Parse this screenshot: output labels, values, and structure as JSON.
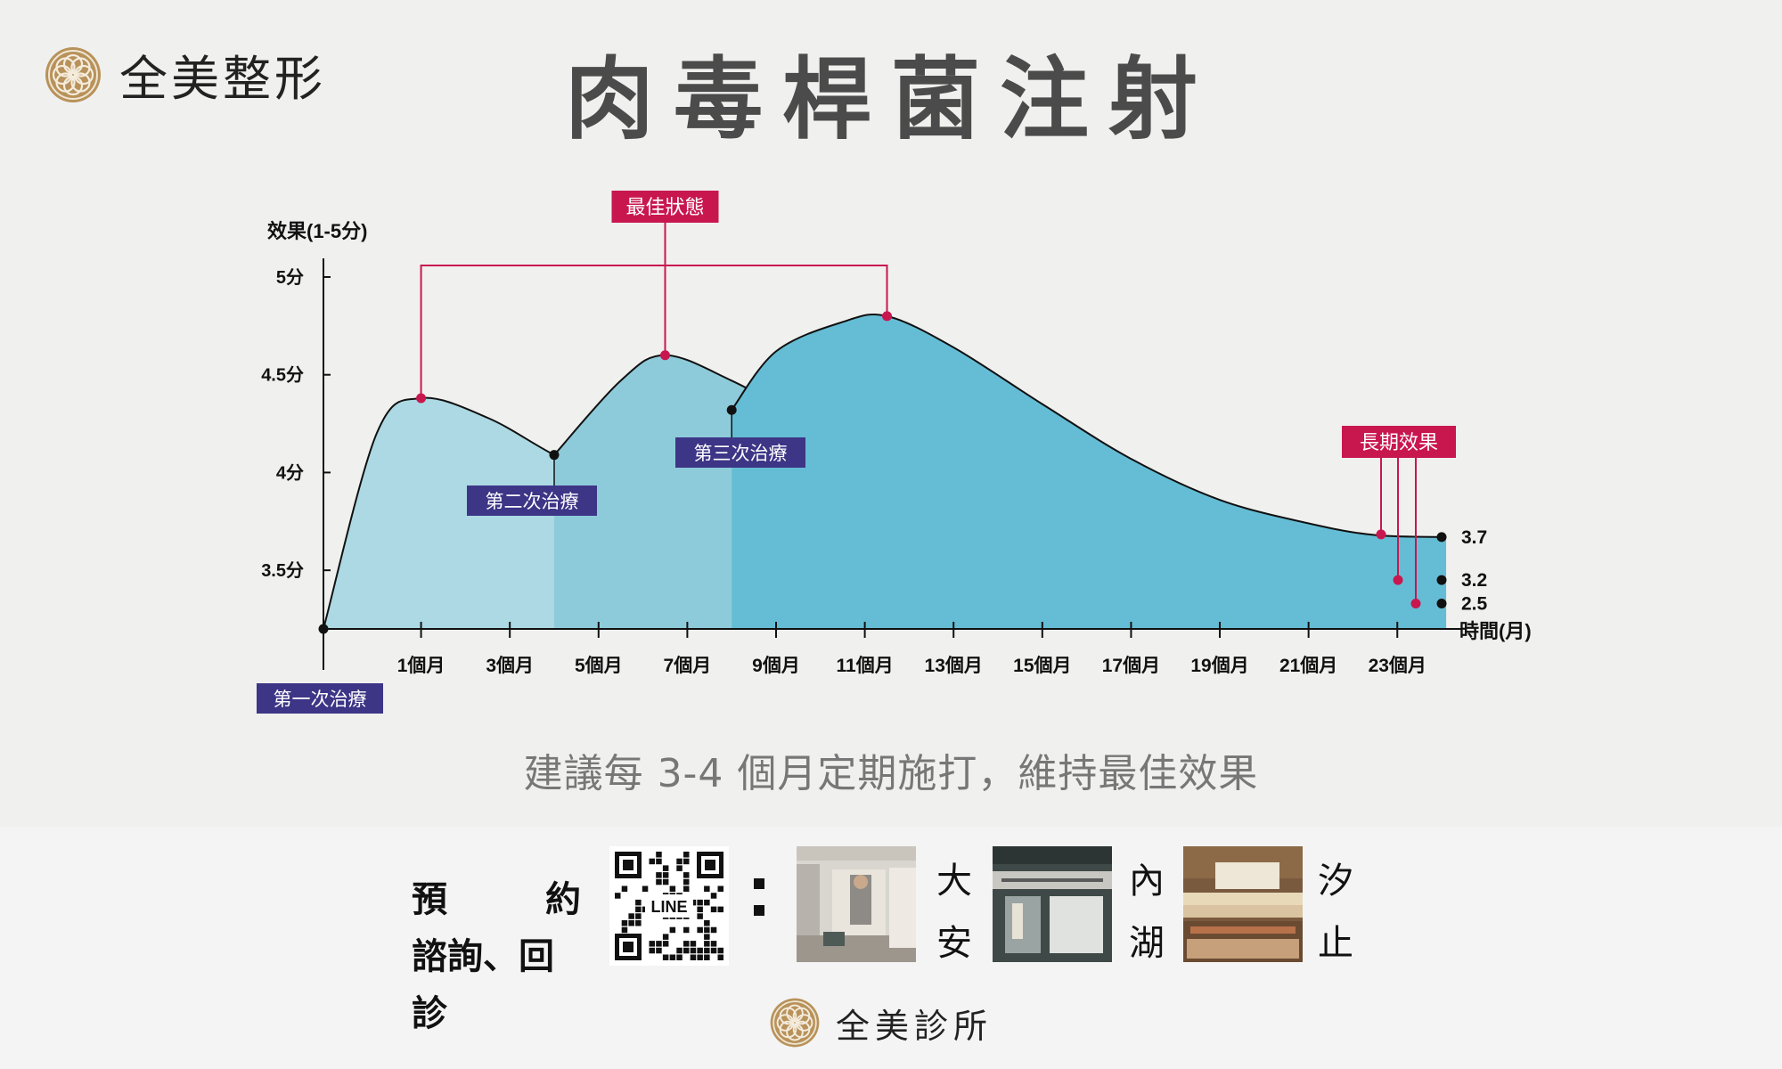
{
  "brand": {
    "name": "全美整形",
    "logo_icon": "flower-medallion-icon"
  },
  "title": "肉毒桿菌注射",
  "subtitle": "建議每 3-4 個月定期施打，維持最佳效果",
  "colors": {
    "accent": "#c8174f",
    "treatment_label": "#3d3586",
    "area_light": "#acd9e3",
    "area_mid": "#8ecbda",
    "area_dark": "#65bdd5",
    "gold": "#b8925a"
  },
  "chart_data": {
    "type": "area",
    "ylabel": "效果(1-5分)",
    "xlabel": "時間(月)",
    "yticks": [
      "5分",
      "4.5分",
      "4分",
      "3.5分"
    ],
    "ytick_values": [
      5,
      4.5,
      4,
      3.5
    ],
    "ylim": [
      3.2,
      5.05
    ],
    "xticks": [
      "1個月",
      "3個月",
      "5個月",
      "7個月",
      "9個月",
      "11個月",
      "13個月",
      "15個月",
      "17個月",
      "19個月",
      "21個月",
      "23個月"
    ],
    "xtick_values": [
      1,
      3,
      5,
      7,
      9,
      11,
      13,
      15,
      17,
      19,
      21,
      23
    ],
    "xlim": [
      -1.2,
      24.3
    ],
    "series": [
      {
        "name": "第一次治療",
        "x": [
          -1.2,
          0,
          1,
          2.5,
          4,
          6,
          8,
          10,
          12,
          14,
          16,
          18,
          20,
          22,
          24.1
        ],
        "y": [
          3.2,
          4.2,
          4.38,
          4.28,
          4.09,
          3.86,
          3.7,
          3.57,
          3.48,
          3.42,
          3.38,
          3.36,
          3.34,
          3.33,
          3.33
        ]
      },
      {
        "name": "第二次治療",
        "x": [
          4,
          5.5,
          6.5,
          8,
          10,
          12,
          14,
          16,
          18,
          20,
          22,
          24.1
        ],
        "y": [
          4.09,
          4.47,
          4.6,
          4.47,
          4.23,
          4.0,
          3.81,
          3.66,
          3.56,
          3.5,
          3.46,
          3.45
        ]
      },
      {
        "name": "第三次治療",
        "x": [
          8,
          9,
          10.5,
          11.5,
          13,
          15,
          17,
          19,
          21,
          22.5,
          24.1
        ],
        "y": [
          4.32,
          4.62,
          4.77,
          4.8,
          4.64,
          4.35,
          4.07,
          3.86,
          3.74,
          3.68,
          3.67
        ]
      }
    ],
    "peak_label": "最佳狀態",
    "long_term_label": "長期效果",
    "treatment_labels": [
      "第一次治療",
      "第二次治療",
      "第三次治療"
    ],
    "end_values": [
      "3.7",
      "3.2",
      "2.5"
    ]
  },
  "footer": {
    "cta_line1_a": "預",
    "cta_line1_b": "約",
    "cta_line2": "諮詢、回診",
    "qr_label": "LINE",
    "colon": "：",
    "locations": [
      {
        "line1": "大",
        "line2": "安"
      },
      {
        "line1": "內",
        "line2": "湖"
      },
      {
        "line1": "汐",
        "line2": "止"
      }
    ],
    "clinic_name": "全美診所"
  }
}
